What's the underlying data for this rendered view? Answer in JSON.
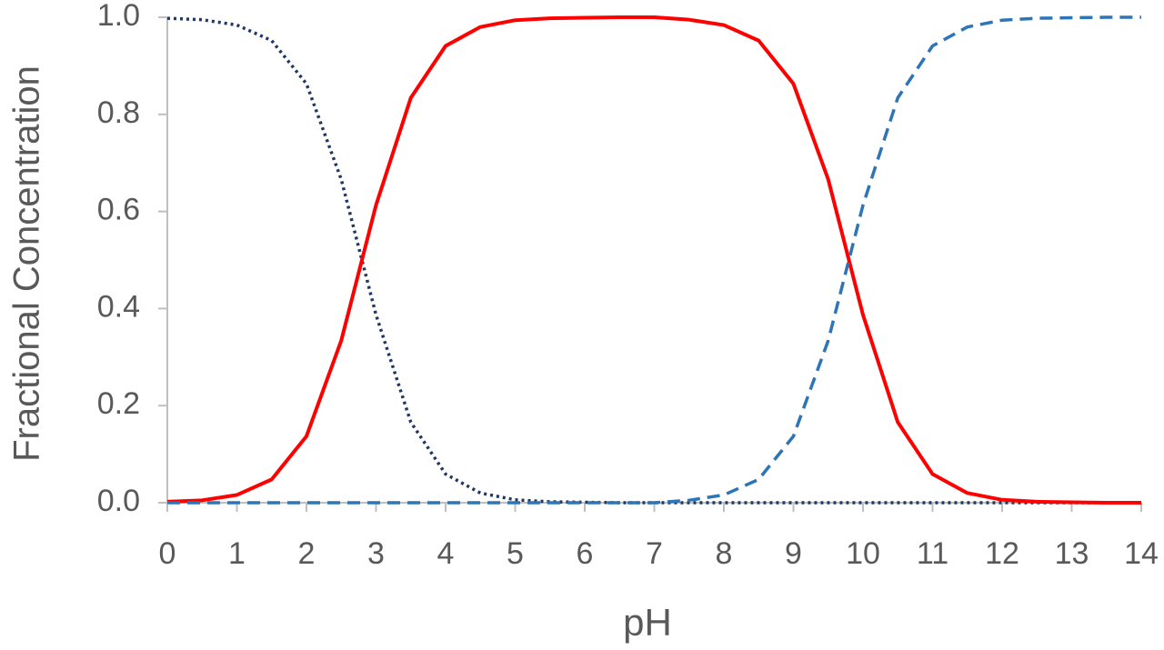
{
  "chart_data": {
    "type": "line",
    "x_label": "pH",
    "y_label": "Fractional Concentration",
    "x": [
      0,
      0.5,
      1,
      1.5,
      2,
      2.5,
      3,
      3.5,
      4,
      4.5,
      5,
      5.5,
      6,
      6.5,
      7,
      7.5,
      8,
      8.5,
      9,
      9.5,
      10,
      10.5,
      11,
      11.5,
      12,
      12.5,
      13,
      13.5,
      14
    ],
    "series": [
      {
        "color": "#1f3864",
        "line_style": "dotted",
        "values": [
          0.998,
          0.995,
          0.984,
          0.952,
          0.863,
          0.666,
          0.387,
          0.166,
          0.059,
          0.02,
          0.006,
          0.002,
          0.001,
          0,
          0,
          0,
          0,
          0,
          0,
          0,
          0,
          0,
          0,
          0,
          0,
          0,
          0,
          0,
          0
        ]
      },
      {
        "color": "#ff0000",
        "line_style": "solid",
        "values": [
          0.002,
          0.005,
          0.016,
          0.048,
          0.137,
          0.334,
          0.613,
          0.834,
          0.941,
          0.98,
          0.994,
          0.998,
          0.999,
          1,
          1,
          0.995,
          0.984,
          0.952,
          0.863,
          0.666,
          0.387,
          0.166,
          0.059,
          0.02,
          0.006,
          0.002,
          0.001,
          0,
          0
        ]
      },
      {
        "color": "#2e75b6",
        "line_style": "dashed",
        "values": [
          0,
          0,
          0,
          0,
          0,
          0,
          0,
          0,
          0,
          0,
          0,
          0,
          0,
          0,
          0,
          0.005,
          0.016,
          0.048,
          0.137,
          0.334,
          0.613,
          0.834,
          0.941,
          0.98,
          0.994,
          0.998,
          0.999,
          1,
          1
        ]
      }
    ],
    "xlim": [
      0,
      14
    ],
    "xticks": [
      0,
      1,
      2,
      3,
      4,
      5,
      6,
      7,
      8,
      9,
      10,
      11,
      12,
      13,
      14
    ],
    "ylim": [
      0,
      1
    ],
    "yticks": [
      {
        "value": 0,
        "label": "0.0"
      },
      0.2,
      0.4,
      0.6,
      0.8,
      {
        "value": 1,
        "label": "1.0"
      }
    ],
    "grid": false
  }
}
